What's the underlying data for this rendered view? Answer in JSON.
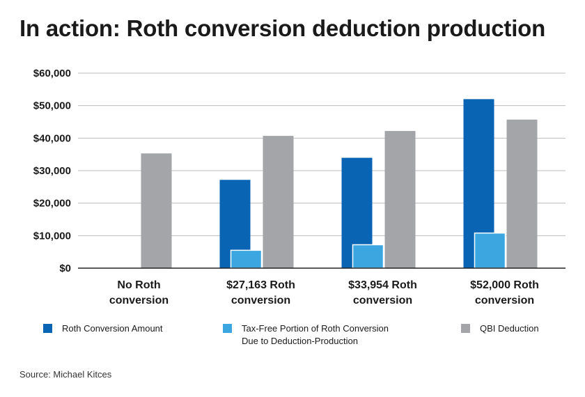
{
  "title": "In action: Roth conversion deduction production",
  "source": "Source: Michael Kitces",
  "colors": {
    "roth_conversion": "#0a64b4",
    "tax_free": "#3ca6e0",
    "qbi": "#a3a5a8",
    "gridline": "#bbbbbb",
    "axis": "#222222"
  },
  "legend": {
    "items": [
      {
        "label_line1": "Roth Conversion Amount",
        "label_line2": ""
      },
      {
        "label_line1": "Tax-Free Portion of Roth Conversion",
        "label_line2": "Due to Deduction-Production"
      },
      {
        "label_line1": "QBI Deduction",
        "label_line2": ""
      }
    ]
  },
  "chart_data": {
    "type": "bar",
    "title": "In action: Roth conversion deduction production",
    "ylim": [
      0,
      60000
    ],
    "yticks": [
      "$0",
      "$10,000",
      "$20,000",
      "$30,000",
      "$40,000",
      "$50,000",
      "$60,000"
    ],
    "ytick_values": [
      0,
      10000,
      20000,
      30000,
      40000,
      50000,
      60000
    ],
    "categories": [
      [
        "No Roth",
        "conversion"
      ],
      [
        "$27,163 Roth",
        "conversion"
      ],
      [
        "$33,954 Roth",
        "conversion"
      ],
      [
        "$52,000 Roth",
        "conversion"
      ]
    ],
    "series": [
      {
        "name": "Roth Conversion Amount",
        "values": [
          0,
          27163,
          33954,
          52000
        ]
      },
      {
        "name": "Tax-Free Portion of Roth Conversion Due to Deduction-Production",
        "values": [
          0,
          5500,
          7200,
          10800
        ]
      },
      {
        "name": "QBI Deduction",
        "values": [
          35300,
          40700,
          42200,
          45700
        ]
      }
    ],
    "grid": true,
    "legend_position": "bottom"
  }
}
